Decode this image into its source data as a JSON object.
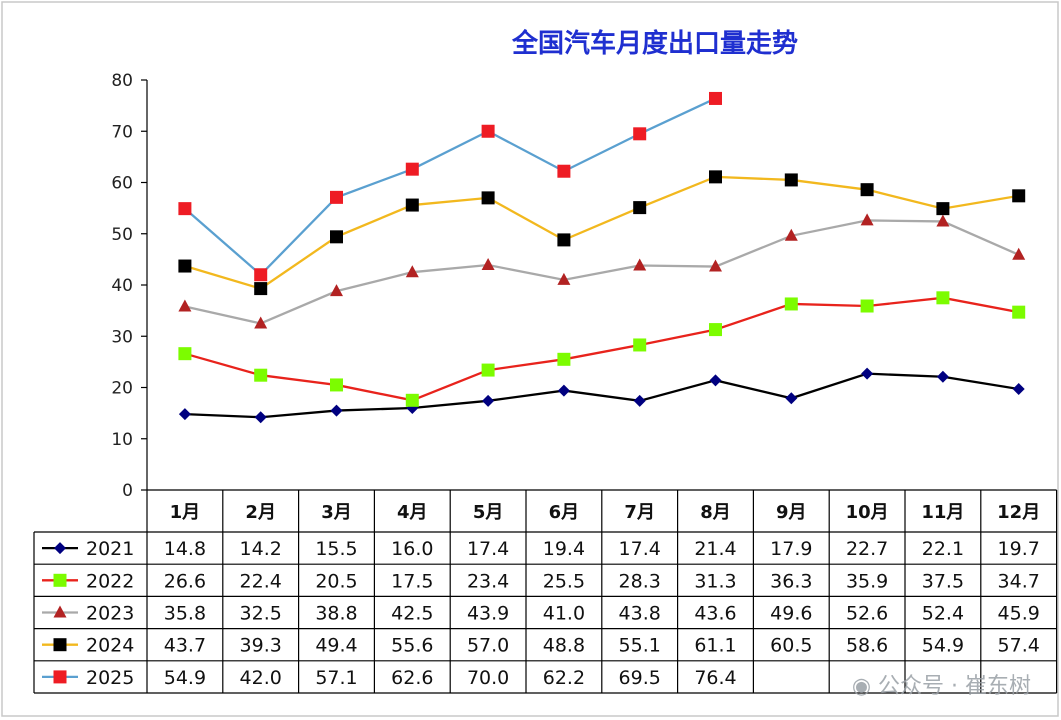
{
  "chart_data": {
    "type": "line",
    "title": "全国汽车月度出口量走势",
    "categories": [
      "1月",
      "2月",
      "3月",
      "4月",
      "5月",
      "6月",
      "7月",
      "8月",
      "9月",
      "10月",
      "11月",
      "12月"
    ],
    "ylim": [
      0,
      80
    ],
    "yticks": [
      "0",
      "10",
      "20",
      "30",
      "40",
      "50",
      "60",
      "70",
      "80"
    ],
    "grid": false,
    "legend": "table-left",
    "series": [
      {
        "name": "2021",
        "color": "#000080",
        "line_color": "#000000",
        "marker": "diamond",
        "values": [
          14.8,
          14.2,
          15.5,
          16.0,
          17.4,
          19.4,
          17.4,
          21.4,
          17.9,
          22.7,
          22.1,
          19.7
        ],
        "labels": [
          "14.8",
          "14.2",
          "15.5",
          "16.0",
          "17.4",
          "19.4",
          "17.4",
          "21.4",
          "17.9",
          "22.7",
          "22.1",
          "19.7"
        ]
      },
      {
        "name": "2022",
        "color": "#7cfc00",
        "line_color": "#e8231c",
        "marker": "square",
        "values": [
          26.6,
          22.4,
          20.5,
          17.5,
          23.4,
          25.5,
          28.3,
          31.3,
          36.3,
          35.9,
          37.5,
          34.7
        ],
        "labels": [
          "26.6",
          "22.4",
          "20.5",
          "17.5",
          "23.4",
          "25.5",
          "28.3",
          "31.3",
          "36.3",
          "35.9",
          "37.5",
          "34.7"
        ]
      },
      {
        "name": "2023",
        "color": "#b22222",
        "line_color": "#a9a9a9",
        "marker": "triangle",
        "values": [
          35.8,
          32.5,
          38.8,
          42.5,
          43.9,
          41.0,
          43.8,
          43.6,
          49.6,
          52.6,
          52.4,
          45.9
        ],
        "labels": [
          "35.8",
          "32.5",
          "38.8",
          "42.5",
          "43.9",
          "41.0",
          "43.8",
          "43.6",
          "49.6",
          "52.6",
          "52.4",
          "45.9"
        ]
      },
      {
        "name": "2024",
        "color": "#000000",
        "line_color": "#f2b81e",
        "marker": "square",
        "values": [
          43.7,
          39.3,
          49.4,
          55.6,
          57.0,
          48.8,
          55.1,
          61.1,
          60.5,
          58.6,
          54.9,
          57.4
        ],
        "labels": [
          "43.7",
          "39.3",
          "49.4",
          "55.6",
          "57.0",
          "48.8",
          "55.1",
          "61.1",
          "60.5",
          "58.6",
          "54.9",
          "57.4"
        ]
      },
      {
        "name": "2025",
        "color": "#ee1c24",
        "line_color": "#5aa0d0",
        "marker": "square",
        "values": [
          54.9,
          42.0,
          57.1,
          62.6,
          70.0,
          62.2,
          69.5,
          76.4,
          null,
          null,
          null,
          null
        ],
        "labels": [
          "54.9",
          "42.0",
          "57.1",
          "62.6",
          "70.0",
          "62.2",
          "69.5",
          "76.4",
          "",
          "",
          "",
          ""
        ]
      }
    ]
  },
  "watermark": "公众号 · 崔东树"
}
